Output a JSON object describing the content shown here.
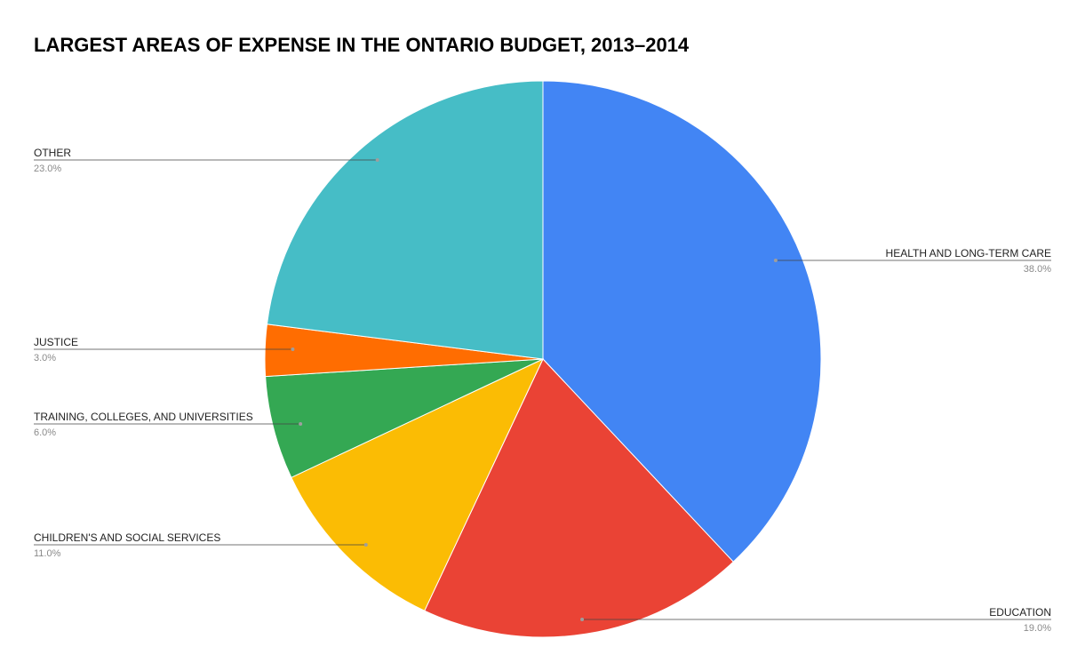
{
  "chart_data": {
    "type": "pie",
    "title": "LARGEST AREAS OF EXPENSE IN THE ONTARIO BUDGET, 2013–2014",
    "slices": [
      {
        "label": "HEALTH AND LONG-TERM CARE",
        "value": 38.0,
        "display": "38.0%",
        "color": "#4285f4"
      },
      {
        "label": "EDUCATION",
        "value": 19.0,
        "display": "19.0%",
        "color": "#ea4335"
      },
      {
        "label": "CHILDREN'S AND SOCIAL SERVICES",
        "value": 11.0,
        "display": "11.0%",
        "color": "#fbbc04"
      },
      {
        "label": "TRAINING, COLLEGES, AND UNIVERSITIES",
        "value": 6.0,
        "display": "6.0%",
        "color": "#34a853"
      },
      {
        "label": "JUSTICE",
        "value": 3.0,
        "display": "3.0%",
        "color": "#ff6d01"
      },
      {
        "label": "OTHER",
        "value": 23.0,
        "display": "23.0%",
        "color": "#46bdc6"
      }
    ],
    "start_angle": "12 o'clock",
    "direction": "clockwise",
    "legend": "none"
  }
}
